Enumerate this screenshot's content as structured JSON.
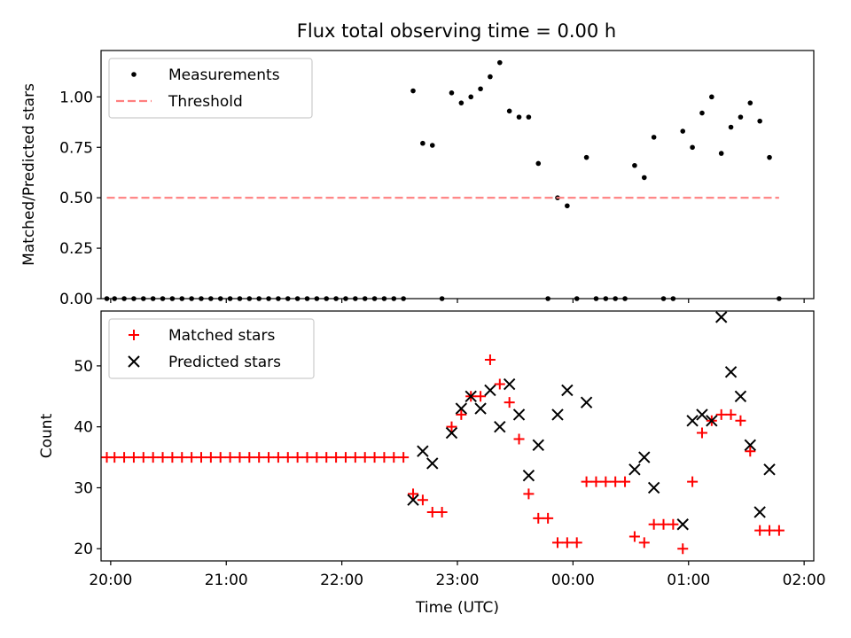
{
  "figure": {
    "title": "Flux total observing time = 0.00 h"
  },
  "chart_data": [
    {
      "type": "scatter",
      "title": "Flux total observing time = 0.00 h",
      "xlabel": "",
      "ylabel": "Matched/Predicted stars",
      "xlim": [
        "19:55",
        "02:05"
      ],
      "ylim": [
        0,
        1.23
      ],
      "x_ticks": [
        "20:00",
        "21:00",
        "22:00",
        "23:00",
        "00:00",
        "01:00",
        "02:00"
      ],
      "y_ticks": [
        "0.00",
        "0.25",
        "0.50",
        "0.75",
        "1.00"
      ],
      "legend": {
        "placement": "upper left"
      },
      "series": [
        {
          "name": "Measurements",
          "marker": "point",
          "color": "#000000",
          "x": [
            "19:58",
            "20:02",
            "20:07",
            "20:12",
            "20:17",
            "20:22",
            "20:27",
            "20:32",
            "20:37",
            "20:42",
            "20:47",
            "20:52",
            "20:57",
            "21:02",
            "21:07",
            "21:12",
            "21:17",
            "21:22",
            "21:27",
            "21:32",
            "21:37",
            "21:42",
            "21:47",
            "21:52",
            "21:57",
            "22:02",
            "22:07",
            "22:12",
            "22:17",
            "22:22",
            "22:27",
            "22:32",
            "22:37",
            "22:42",
            "22:47",
            "22:52",
            "22:57",
            "23:02",
            "23:07",
            "23:12",
            "23:17",
            "23:22",
            "23:27",
            "23:32",
            "23:37",
            "23:42",
            "23:47",
            "23:52",
            "23:57",
            "00:02",
            "00:07",
            "00:12",
            "00:17",
            "00:22",
            "00:27",
            "00:32",
            "00:37",
            "00:42",
            "00:47",
            "00:52",
            "00:57",
            "01:02",
            "01:07",
            "01:12",
            "01:17",
            "01:22",
            "01:27",
            "01:32",
            "01:37",
            "01:42",
            "01:47"
          ],
          "y": [
            0,
            0,
            0,
            0,
            0,
            0,
            0,
            0,
            0,
            0,
            0,
            0,
            0,
            0,
            0,
            0,
            0,
            0,
            0,
            0,
            0,
            0,
            0,
            0,
            0,
            0,
            0,
            0,
            0,
            0,
            0,
            0,
            1.03,
            0.77,
            0.76,
            0,
            1.02,
            0.97,
            1.0,
            1.04,
            1.1,
            1.17,
            0.93,
            0.9,
            0.9,
            0.67,
            0,
            0.5,
            0.46,
            0,
            0.7,
            0,
            0,
            0,
            0,
            0.66,
            0.6,
            0.8,
            0,
            0,
            0.83,
            0.75,
            0.92,
            1.0,
            0.72,
            0.85,
            0.9,
            0.97,
            0.88,
            0.7,
            0
          ]
        },
        {
          "name": "Threshold",
          "style": "dashed",
          "color": "#ff7f7f",
          "x": [
            "19:58",
            "01:47"
          ],
          "y": [
            0.5,
            0.5
          ]
        }
      ]
    },
    {
      "type": "scatter",
      "xlabel": "Time (UTC)",
      "ylabel": "Count",
      "xlim": [
        "19:55",
        "02:05"
      ],
      "ylim": [
        18,
        59
      ],
      "x_ticks": [
        "20:00",
        "21:00",
        "22:00",
        "23:00",
        "00:00",
        "01:00",
        "02:00"
      ],
      "y_ticks": [
        "20",
        "30",
        "40",
        "50"
      ],
      "legend": {
        "placement": "upper left"
      },
      "series": [
        {
          "name": "Matched stars",
          "marker": "plus",
          "color": "#ff0000",
          "x": [
            "19:58",
            "20:02",
            "20:07",
            "20:12",
            "20:17",
            "20:22",
            "20:27",
            "20:32",
            "20:37",
            "20:42",
            "20:47",
            "20:52",
            "20:57",
            "21:02",
            "21:07",
            "21:12",
            "21:17",
            "21:22",
            "21:27",
            "21:32",
            "21:37",
            "21:42",
            "21:47",
            "21:52",
            "21:57",
            "22:02",
            "22:07",
            "22:12",
            "22:17",
            "22:22",
            "22:27",
            "22:32",
            "22:37",
            "22:42",
            "22:47",
            "22:52",
            "22:57",
            "23:02",
            "23:07",
            "23:12",
            "23:17",
            "23:22",
            "23:27",
            "23:32",
            "23:37",
            "23:42",
            "23:47",
            "23:52",
            "23:57",
            "00:02",
            "00:07",
            "00:12",
            "00:17",
            "00:22",
            "00:27",
            "00:32",
            "00:37",
            "00:42",
            "00:47",
            "00:52",
            "00:57",
            "01:02",
            "01:07",
            "01:12",
            "01:17",
            "01:22",
            "01:27",
            "01:32",
            "01:37",
            "01:42",
            "01:47"
          ],
          "y": [
            35,
            35,
            35,
            35,
            35,
            35,
            35,
            35,
            35,
            35,
            35,
            35,
            35,
            35,
            35,
            35,
            35,
            35,
            35,
            35,
            35,
            35,
            35,
            35,
            35,
            35,
            35,
            35,
            35,
            35,
            35,
            35,
            29,
            28,
            26,
            26,
            40,
            42,
            45,
            45,
            51,
            47,
            44,
            38,
            29,
            25,
            25,
            21,
            21,
            21,
            31,
            31,
            31,
            31,
            31,
            22,
            21,
            24,
            24,
            24,
            20,
            31,
            39,
            41,
            42,
            42,
            41,
            36,
            23,
            23,
            23
          ]
        },
        {
          "name": "Predicted stars",
          "marker": "x",
          "color": "#000000",
          "x": [
            "22:37",
            "22:42",
            "22:47",
            "22:57",
            "23:02",
            "23:07",
            "23:12",
            "23:17",
            "23:22",
            "23:27",
            "23:32",
            "23:37",
            "23:42",
            "23:52",
            "23:57",
            "00:07",
            "00:32",
            "00:37",
            "00:42",
            "00:57",
            "01:02",
            "01:07",
            "01:12",
            "01:17",
            "01:22",
            "01:27",
            "01:32",
            "01:37",
            "01:42"
          ],
          "y": [
            28,
            36,
            34,
            39,
            43,
            45,
            43,
            46,
            40,
            47,
            42,
            32,
            37,
            42,
            46,
            44,
            33,
            35,
            30,
            24,
            41,
            42,
            41,
            58,
            49,
            45,
            37,
            26,
            33
          ]
        }
      ]
    }
  ]
}
